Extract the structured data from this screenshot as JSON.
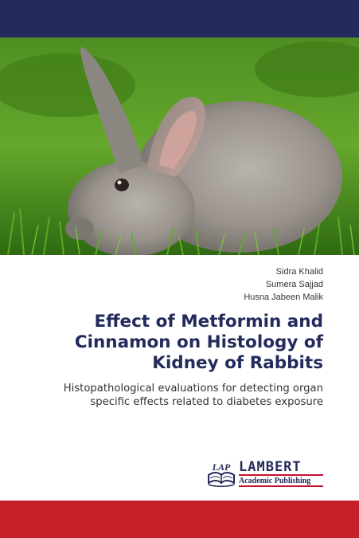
{
  "cover": {
    "colors": {
      "top_band": "#232a5c",
      "bottom_band": "#c51f2a",
      "title": "#232a5c"
    },
    "photo": {
      "subject": "rabbit-in-grass"
    },
    "authors": [
      "Sidra Khalid",
      "Sumera Sajjad",
      "Husna Jabeen Malik"
    ],
    "title_lines": [
      "Effect of Metformin and",
      "Cinnamon on Histology of",
      "Kidney of Rabbits"
    ],
    "subtitle_lines": [
      "Histopathological evaluations for detecting organ",
      "specific effects related to diabetes exposure"
    ],
    "publisher": {
      "emblem_text": "LAP",
      "name": "LAMBERT",
      "sub": "Academic Publishing"
    }
  }
}
